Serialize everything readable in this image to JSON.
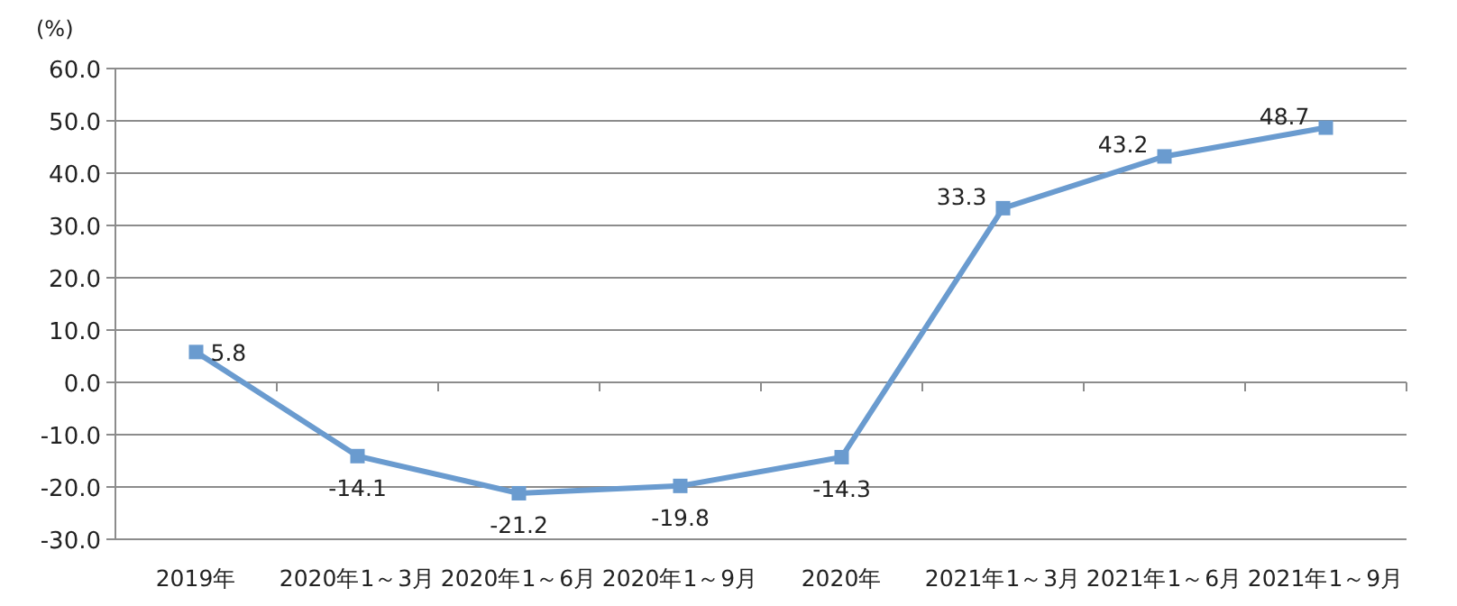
{
  "chart_data": {
    "type": "line",
    "ylabel": "(%)",
    "categories": [
      "2019年",
      "2020年1～3月",
      "2020年1～6月",
      "2020年1～9月",
      "2020年",
      "2021年1～3月",
      "2021年1～6月",
      "2021年1～9月"
    ],
    "series": [
      {
        "color": "#6a9bcf",
        "values": [
          5.8,
          -14.1,
          -21.2,
          -19.8,
          -14.3,
          33.3,
          43.2,
          48.7
        ]
      }
    ],
    "ylim": [
      -30,
      60
    ],
    "yticks": [
      {
        "value": -30,
        "label": "-30.0"
      },
      {
        "value": -20,
        "label": "-20.0"
      },
      {
        "value": -10,
        "label": "-10.0"
      },
      {
        "value": 0,
        "label": "0.0"
      },
      {
        "value": 10,
        "label": "10.0"
      },
      {
        "value": 20,
        "label": "20.0"
      },
      {
        "value": 30,
        "label": "30.0"
      },
      {
        "value": 40,
        "label": "40.0"
      },
      {
        "value": 50,
        "label": "50.0"
      },
      {
        "value": 60,
        "label": "60.0"
      }
    ],
    "grid": "y",
    "marker": "square",
    "data_labels": true
  }
}
